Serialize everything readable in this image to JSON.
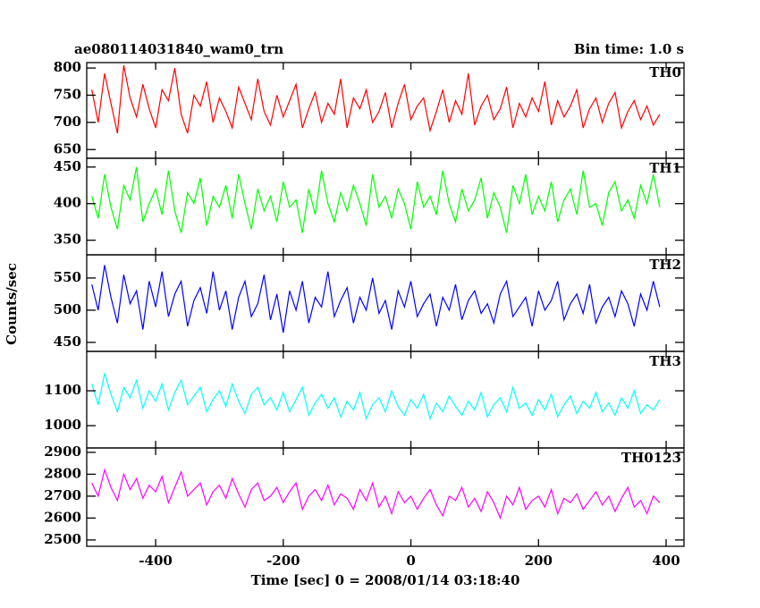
{
  "chart_data": {
    "type": "line",
    "title": "ae080114031840_wam0_trn",
    "subtitle": "Bin time: 1.0 s",
    "xlabel": "Time [sec] 0 = 2008/01/14 03:18:40",
    "ylabel": "Counts/sec",
    "xlim": [
      -508,
      428
    ],
    "xticks": [
      -400,
      -200,
      0,
      200,
      400
    ],
    "x": [
      -500,
      -490,
      -480,
      -470,
      -460,
      -450,
      -440,
      -430,
      -420,
      -410,
      -400,
      -390,
      -380,
      -370,
      -360,
      -350,
      -340,
      -330,
      -320,
      -310,
      -300,
      -290,
      -280,
      -270,
      -260,
      -250,
      -240,
      -230,
      -220,
      -210,
      -200,
      -190,
      -180,
      -170,
      -160,
      -150,
      -140,
      -130,
      -120,
      -110,
      -100,
      -90,
      -80,
      -70,
      -60,
      -50,
      -40,
      -30,
      -20,
      -10,
      0,
      10,
      20,
      30,
      40,
      50,
      60,
      70,
      80,
      90,
      100,
      110,
      120,
      130,
      140,
      150,
      160,
      170,
      180,
      190,
      200,
      210,
      220,
      230,
      240,
      250,
      260,
      270,
      280,
      290,
      300,
      310,
      320,
      330,
      340,
      350,
      360,
      370,
      380,
      390
    ],
    "series": [
      {
        "name": "TH0",
        "color": "#ff0000",
        "ylim": [
          634,
          810
        ],
        "yticks": [
          650,
          700,
          750,
          800
        ],
        "values": [
          760,
          700,
          790,
          735,
          680,
          805,
          745,
          710,
          770,
          725,
          690,
          760,
          740,
          800,
          715,
          680,
          750,
          730,
          775,
          700,
          745,
          720,
          690,
          765,
          735,
          705,
          780,
          720,
          695,
          750,
          710,
          740,
          770,
          690,
          725,
          755,
          700,
          735,
          715,
          780,
          690,
          745,
          725,
          760,
          700,
          720,
          755,
          690,
          735,
          770,
          705,
          730,
          745,
          685,
          720,
          760,
          700,
          740,
          715,
          790,
          695,
          730,
          750,
          705,
          725,
          765,
          690,
          735,
          710,
          745,
          720,
          775,
          695,
          740,
          710,
          730,
          760,
          690,
          725,
          745,
          700,
          735,
          755,
          690,
          720,
          740,
          705,
          730,
          695,
          715
        ]
      },
      {
        "name": "TH1",
        "color": "#00ff00",
        "ylim": [
          330,
          462
        ],
        "yticks": [
          350,
          400,
          450
        ],
        "values": [
          410,
          380,
          440,
          395,
          365,
          425,
          405,
          450,
          375,
          400,
          420,
          385,
          445,
          390,
          360,
          415,
          400,
          435,
          370,
          410,
          395,
          425,
          380,
          440,
          400,
          365,
          420,
          390,
          410,
          375,
          430,
          395,
          405,
          360,
          420,
          385,
          445,
          400,
          375,
          415,
          390,
          425,
          400,
          370,
          440,
          395,
          410,
          380,
          420,
          400,
          365,
          430,
          395,
          410,
          385,
          445,
          400,
          375,
          420,
          390,
          405,
          435,
          380,
          415,
          395,
          360,
          425,
          400,
          440,
          385,
          410,
          390,
          430,
          375,
          405,
          420,
          385,
          445,
          395,
          400,
          370,
          415,
          430,
          390,
          405,
          380,
          425,
          400,
          440,
          395
        ]
      },
      {
        "name": "TH2",
        "color": "#0000ff",
        "ylim": [
          436,
          586
        ],
        "yticks": [
          450,
          500,
          550
        ],
        "values": [
          540,
          500,
          570,
          520,
          480,
          555,
          510,
          530,
          470,
          545,
          505,
          560,
          490,
          525,
          545,
          475,
          515,
          535,
          495,
          560,
          500,
          530,
          470,
          520,
          545,
          490,
          510,
          555,
          485,
          525,
          465,
          530,
          500,
          545,
          480,
          520,
          505,
          560,
          490,
          515,
          535,
          480,
          520,
          500,
          550,
          495,
          515,
          470,
          530,
          505,
          545,
          490,
          510,
          525,
          475,
          520,
          500,
          540,
          485,
          515,
          530,
          495,
          510,
          480,
          525,
          545,
          490,
          505,
          520,
          475,
          530,
          500,
          515,
          545,
          485,
          510,
          525,
          495,
          540,
          480,
          505,
          520,
          490,
          530,
          510,
          475,
          525,
          500,
          545,
          505
        ]
      },
      {
        "name": "TH3",
        "color": "#00ffff",
        "ylim": [
          936,
          1213
        ],
        "yticks": [
          1000,
          1100
        ],
        "values": [
          1120,
          1060,
          1150,
          1090,
          1040,
          1110,
          1080,
          1130,
          1050,
          1100,
          1070,
          1120,
          1045,
          1095,
          1130,
          1060,
          1085,
          1110,
          1040,
          1075,
          1100,
          1055,
          1120,
          1070,
          1035,
          1090,
          1110,
          1060,
          1080,
          1045,
          1095,
          1040,
          1075,
          1110,
          1030,
          1065,
          1090,
          1050,
          1080,
          1025,
          1070,
          1045,
          1095,
          1020,
          1060,
          1080,
          1040,
          1100,
          1055,
          1030,
          1075,
          1050,
          1090,
          1020,
          1065,
          1040,
          1085,
          1055,
          1030,
          1070,
          1045,
          1095,
          1025,
          1060,
          1080,
          1040,
          1110,
          1050,
          1065,
          1030,
          1075,
          1045,
          1090,
          1025,
          1060,
          1085,
          1035,
          1070,
          1050,
          1095,
          1040,
          1065,
          1030,
          1080,
          1050,
          1100,
          1035,
          1060,
          1045,
          1075
        ]
      },
      {
        "name": "TH0123",
        "color": "#ff00ff",
        "ylim": [
          2471,
          2920
        ],
        "yticks": [
          2500,
          2600,
          2700,
          2800,
          2900
        ],
        "values": [
          2760,
          2700,
          2820,
          2740,
          2680,
          2800,
          2730,
          2780,
          2690,
          2750,
          2720,
          2790,
          2670,
          2740,
          2810,
          2700,
          2730,
          2760,
          2660,
          2720,
          2750,
          2690,
          2780,
          2710,
          2650,
          2730,
          2760,
          2680,
          2700,
          2740,
          2670,
          2720,
          2760,
          2640,
          2700,
          2730,
          2680,
          2750,
          2660,
          2710,
          2690,
          2640,
          2730,
          2680,
          2760,
          2650,
          2700,
          2620,
          2720,
          2670,
          2700,
          2640,
          2690,
          2730,
          2660,
          2610,
          2700,
          2680,
          2740,
          2650,
          2690,
          2630,
          2720,
          2670,
          2600,
          2700,
          2660,
          2740,
          2640,
          2680,
          2700,
          2650,
          2730,
          2620,
          2690,
          2670,
          2710,
          2640,
          2680,
          2720,
          2660,
          2700,
          2630,
          2690,
          2740,
          2650,
          2680,
          2620,
          2700,
          2670
        ]
      }
    ]
  }
}
